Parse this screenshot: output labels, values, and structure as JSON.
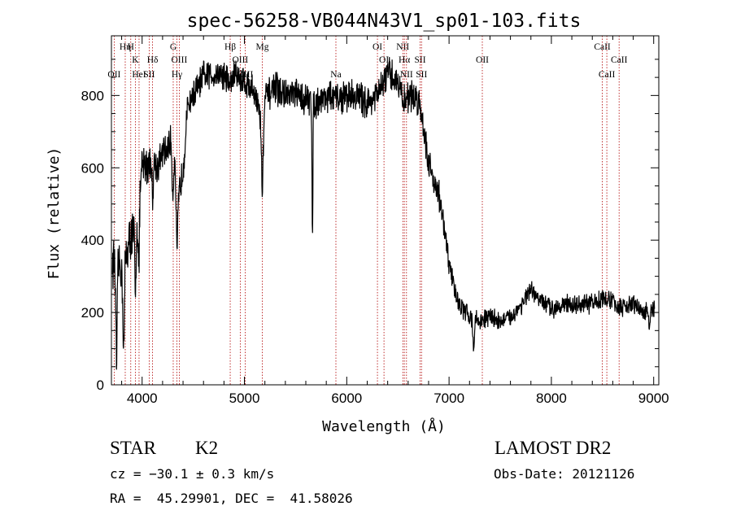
{
  "chart_data": {
    "type": "line",
    "title": "spec-56258-VB044N43V1_sp01-103.fits",
    "xlabel": "Wavelength (Å)",
    "ylabel": "Flux (relative)",
    "xlim": [
      3700,
      9050
    ],
    "ylim": [
      0,
      965
    ],
    "x_ticks": [
      4000,
      5000,
      6000,
      7000,
      8000,
      9000
    ],
    "y_ticks": [
      0,
      200,
      400,
      600,
      800
    ],
    "line_color": "#000000",
    "marker_color": "#b00000",
    "envelope_x": [
      3700,
      3760,
      3800,
      3850,
      3900,
      3950,
      4000,
      4050,
      4100,
      4150,
      4200,
      4250,
      4300,
      4350,
      4400,
      4450,
      4500,
      4600,
      4700,
      4800,
      4860,
      4900,
      4950,
      5000,
      5100,
      5175,
      5200,
      5300,
      5400,
      5500,
      5600,
      5700,
      5800,
      5900,
      6000,
      6100,
      6200,
      6300,
      6400,
      6500,
      6560,
      6600,
      6700,
      6750,
      6800,
      6850,
      6900,
      6950,
      7000,
      7050,
      7100,
      7150,
      7200,
      7250,
      7300,
      7400,
      7500,
      7600,
      7700,
      7800,
      7900,
      8000,
      8100,
      8200,
      8300,
      8400,
      8500,
      8600,
      8700,
      8800,
      8900,
      9000,
      9040
    ],
    "envelope_y": [
      330,
      360,
      310,
      370,
      420,
      440,
      600,
      610,
      640,
      600,
      640,
      650,
      690,
      510,
      600,
      780,
      800,
      850,
      860,
      860,
      830,
      860,
      850,
      840,
      810,
      720,
      790,
      820,
      800,
      800,
      790,
      780,
      800,
      790,
      800,
      800,
      780,
      800,
      860,
      840,
      780,
      800,
      790,
      720,
      610,
      570,
      530,
      430,
      340,
      270,
      220,
      205,
      190,
      180,
      175,
      190,
      175,
      185,
      220,
      260,
      230,
      210,
      225,
      220,
      220,
      225,
      240,
      230,
      210,
      225,
      200,
      210,
      180
    ],
    "markers": [
      {
        "label": "OII",
        "x": 3727,
        "row": 3
      },
      {
        "label": "Hη",
        "x": 3835,
        "row": 1
      },
      {
        "label": "H",
        "x": 3889,
        "row": 1
      },
      {
        "label": "K",
        "x": 3934,
        "row": 2
      },
      {
        "label": "HeI",
        "x": 3970,
        "row": 3
      },
      {
        "label": "SII",
        "x": 4069,
        "row": 3
      },
      {
        "label": "Hδ",
        "x": 4102,
        "row": 2
      },
      {
        "label": "G",
        "x": 4304,
        "row": 1
      },
      {
        "label": "OIII",
        "x": 4363,
        "row": 2
      },
      {
        "label": "Hγ",
        "x": 4340,
        "row": 3
      },
      {
        "label": "Hβ",
        "x": 4861,
        "row": 1
      },
      {
        "label": "OIII",
        "x": 4959,
        "row": 2
      },
      {
        "label": "OIII",
        "x": 5007,
        "row": 3
      },
      {
        "label": "Mg",
        "x": 5175,
        "row": 1
      },
      {
        "label": "Na",
        "x": 5894,
        "row": 3
      },
      {
        "label": "OI",
        "x": 6300,
        "row": 1
      },
      {
        "label": "OI",
        "x": 6364,
        "row": 2
      },
      {
        "label": "NII",
        "x": 6548,
        "row": 1
      },
      {
        "label": "Hα",
        "x": 6563,
        "row": 2
      },
      {
        "label": "SII",
        "x": 6717,
        "row": 2
      },
      {
        "label": "NII",
        "x": 6584,
        "row": 3
      },
      {
        "label": "SII",
        "x": 6731,
        "row": 3
      },
      {
        "label": "OII",
        "x": 7325,
        "row": 2
      },
      {
        "label": "CaII",
        "x": 8498,
        "row": 1
      },
      {
        "label": "CaII",
        "x": 8542,
        "row": 3
      },
      {
        "label": "CaII",
        "x": 8662,
        "row": 2
      }
    ]
  },
  "info": {
    "object_type": "STAR",
    "subclass": "K2",
    "survey": "LAMOST DR2",
    "redshift_line": "cz = −30.1 ± 0.3 km/s",
    "obs_date_line": "Obs-Date: 20121126",
    "coords_line": "RA =  45.29901, DEC =  41.58026"
  }
}
